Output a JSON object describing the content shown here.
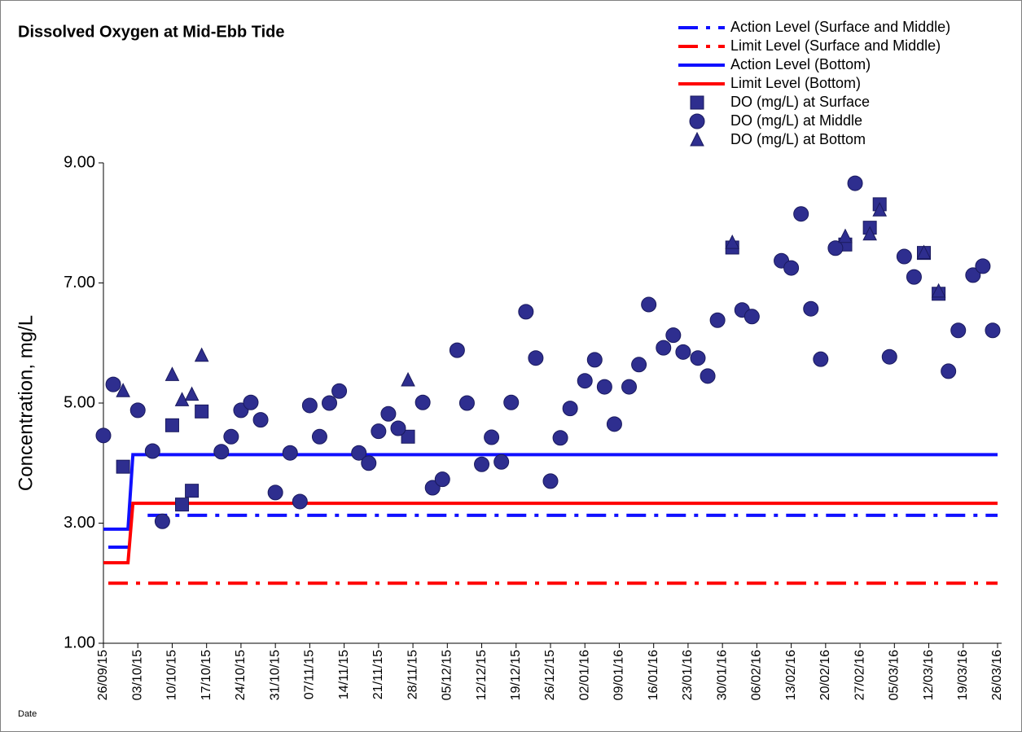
{
  "chart_data": {
    "type": "scatter",
    "title": "Dissolved Oxygen at Mid-Ebb Tide",
    "y_label": "Concentration, mg/L",
    "x_label": "Date",
    "ylim": [
      1,
      9
    ],
    "yticks": [
      {
        "value": 1,
        "label": "1.00"
      },
      {
        "value": 3,
        "label": "3.00"
      },
      {
        "value": 5,
        "label": "5.00"
      },
      {
        "value": 7,
        "label": "7.00"
      },
      {
        "value": 9,
        "label": "9.00"
      }
    ],
    "xlim": [
      "2015-09-26",
      "2016-03-26"
    ],
    "xticks": [
      {
        "value": "2015-09-26",
        "label": "26/09/15"
      },
      {
        "value": "2015-10-03",
        "label": "03/10/15"
      },
      {
        "value": "2015-10-10",
        "label": "10/10/15"
      },
      {
        "value": "2015-10-17",
        "label": "17/10/15"
      },
      {
        "value": "2015-10-24",
        "label": "24/10/15"
      },
      {
        "value": "2015-10-31",
        "label": "31/10/15"
      },
      {
        "value": "2015-11-07",
        "label": "07/11/15"
      },
      {
        "value": "2015-11-14",
        "label": "14/11/15"
      },
      {
        "value": "2015-11-21",
        "label": "21/11/15"
      },
      {
        "value": "2015-11-28",
        "label": "28/11/15"
      },
      {
        "value": "2015-12-05",
        "label": "05/12/15"
      },
      {
        "value": "2015-12-12",
        "label": "12/12/15"
      },
      {
        "value": "2015-12-19",
        "label": "19/12/15"
      },
      {
        "value": "2015-12-26",
        "label": "26/12/15"
      },
      {
        "value": "2016-01-02",
        "label": "02/01/16"
      },
      {
        "value": "2016-01-09",
        "label": "09/01/16"
      },
      {
        "value": "2016-01-16",
        "label": "16/01/16"
      },
      {
        "value": "2016-01-23",
        "label": "23/01/16"
      },
      {
        "value": "2016-01-30",
        "label": "30/01/16"
      },
      {
        "value": "2016-02-06",
        "label": "06/02/16"
      },
      {
        "value": "2016-02-13",
        "label": "13/02/16"
      },
      {
        "value": "2016-02-20",
        "label": "20/02/16"
      },
      {
        "value": "2016-02-27",
        "label": "27/02/16"
      },
      {
        "value": "2016-03-05",
        "label": "05/03/16"
      },
      {
        "value": "2016-03-12",
        "label": "12/03/16"
      },
      {
        "value": "2016-03-19",
        "label": "19/03/16"
      },
      {
        "value": "2016-03-26",
        "label": "26/03/16"
      }
    ],
    "legend_position": "top-right",
    "series": [
      {
        "name": "Action Level (Surface and Middle)",
        "color": "#1010ff",
        "marker": "dashdot",
        "x": [
          "2015-09-27",
          "2015-10-01",
          "2015-10-02",
          "2015-10-05",
          "2016-03-26"
        ],
        "values": [
          2.6,
          2.6,
          null,
          3.13,
          3.13
        ]
      },
      {
        "name": "Limit Level (Surface and Middle)",
        "color": "#ff0000",
        "marker": "dashdot",
        "x": [
          "2015-09-27",
          "2016-03-26"
        ],
        "values": [
          2.0,
          2.0
        ]
      },
      {
        "name": "Action Level (Bottom)",
        "color": "#1010ff",
        "marker": "solid",
        "x": [
          "2015-09-26",
          "2015-10-01",
          "2015-10-02",
          "2016-03-26"
        ],
        "values": [
          2.9,
          2.9,
          4.14,
          4.14
        ]
      },
      {
        "name": "Limit Level (Bottom)",
        "color": "#ff0000",
        "marker": "solid",
        "x": [
          "2015-09-26",
          "2015-10-01",
          "2015-10-02",
          "2016-03-26"
        ],
        "values": [
          2.34,
          2.34,
          3.33,
          3.33
        ]
      },
      {
        "name": "DO (mg/L) at Surface",
        "color": "#2e2e8f",
        "marker": "square",
        "x": [
          "2015-09-30",
          "2015-10-10",
          "2015-10-12",
          "2015-10-14",
          "2015-10-16",
          "2015-11-27",
          "2016-02-01",
          "2016-02-24",
          "2016-02-29",
          "2016-03-02",
          "2016-03-11",
          "2016-03-14"
        ],
        "values": [
          3.94,
          4.63,
          3.31,
          3.54,
          4.86,
          4.44,
          7.59,
          7.64,
          7.92,
          8.31,
          7.5,
          6.82
        ]
      },
      {
        "name": "DO (mg/L) at Middle",
        "color": "#2e2e8f",
        "marker": "circle",
        "x": [
          "2015-09-26",
          "2015-09-28",
          "2015-10-03",
          "2015-10-06",
          "2015-10-08",
          "2015-10-20",
          "2015-10-22",
          "2015-10-24",
          "2015-10-26",
          "2015-10-28",
          "2015-10-31",
          "2015-11-03",
          "2015-11-05",
          "2015-11-07",
          "2015-11-09",
          "2015-11-11",
          "2015-11-13",
          "2015-11-17",
          "2015-11-19",
          "2015-11-21",
          "2015-11-23",
          "2015-11-25",
          "2015-11-30",
          "2015-12-02",
          "2015-12-04",
          "2015-12-07",
          "2015-12-09",
          "2015-12-12",
          "2015-12-14",
          "2015-12-16",
          "2015-12-18",
          "2015-12-21",
          "2015-12-23",
          "2015-12-26",
          "2015-12-28",
          "2015-12-30",
          "2016-01-02",
          "2016-01-04",
          "2016-01-06",
          "2016-01-08",
          "2016-01-11",
          "2016-01-13",
          "2016-01-15",
          "2016-01-18",
          "2016-01-20",
          "2016-01-22",
          "2016-01-25",
          "2016-01-27",
          "2016-01-29",
          "2016-02-03",
          "2016-02-05",
          "2016-02-11",
          "2016-02-13",
          "2016-02-15",
          "2016-02-17",
          "2016-02-19",
          "2016-02-22",
          "2016-02-26",
          "2016-03-04",
          "2016-03-07",
          "2016-03-09",
          "2016-03-16",
          "2016-03-18",
          "2016-03-21",
          "2016-03-23",
          "2016-03-25"
        ],
        "values": [
          4.46,
          5.31,
          4.88,
          4.2,
          3.03,
          4.19,
          4.44,
          4.88,
          5.01,
          4.72,
          3.51,
          4.17,
          3.36,
          4.96,
          4.44,
          5.0,
          5.2,
          4.17,
          4.0,
          4.53,
          4.82,
          4.58,
          5.01,
          3.59,
          3.73,
          5.88,
          5.0,
          3.98,
          4.43,
          4.02,
          5.01,
          6.52,
          5.75,
          3.7,
          4.42,
          4.91,
          5.37,
          5.72,
          5.27,
          4.65,
          5.27,
          5.64,
          6.64,
          5.92,
          6.13,
          5.85,
          5.75,
          5.45,
          6.38,
          6.55,
          6.44,
          7.37,
          7.25,
          8.15,
          6.57,
          5.73,
          7.58,
          8.66,
          5.77,
          7.44,
          7.1,
          5.53,
          6.21,
          7.13,
          7.28,
          6.21
        ]
      },
      {
        "name": "DO (mg/L) at Bottom",
        "color": "#2e2e8f",
        "marker": "triangle",
        "x": [
          "2015-09-30",
          "2015-10-10",
          "2015-10-12",
          "2015-10-14",
          "2015-10-16",
          "2015-11-27",
          "2016-02-01",
          "2016-02-24",
          "2016-02-29",
          "2016-03-02",
          "2016-03-11",
          "2016-03-14"
        ],
        "values": [
          5.2,
          5.47,
          5.05,
          5.14,
          5.79,
          5.38,
          7.67,
          7.77,
          7.81,
          8.21,
          7.5,
          6.86
        ]
      }
    ]
  }
}
